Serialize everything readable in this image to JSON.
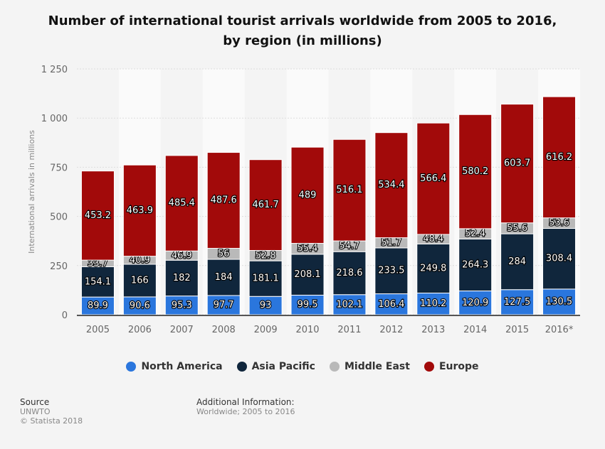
{
  "chart_data": {
    "type": "bar",
    "stacked": true,
    "title": "Number of international tourist arrivals worldwide from 2005 to 2016, by region (in millions)",
    "ylabel": "International arrivals in millions",
    "xlabel": "",
    "ylim": [
      0,
      1250
    ],
    "yticks": [
      0,
      250,
      500,
      750,
      1000,
      1250
    ],
    "ytick_labels": [
      "0",
      "250",
      "500",
      "750",
      "1 000",
      "1 250"
    ],
    "categories": [
      "2005",
      "2006",
      "2007",
      "2008",
      "2009",
      "2010",
      "2011",
      "2012",
      "2013",
      "2014",
      "2015",
      "2016*"
    ],
    "series": [
      {
        "name": "North America",
        "color": "#2a76dd",
        "values": [
          89.9,
          90.6,
          95.3,
          97.7,
          93,
          99.5,
          102.1,
          106.4,
          110.2,
          120.9,
          127.5,
          130.5
        ]
      },
      {
        "name": "Asia Pacific",
        "color": "#10263c",
        "values": [
          154.1,
          166,
          182,
          184,
          181.1,
          208.1,
          218.6,
          233.5,
          249.8,
          264.3,
          284,
          308.4
        ]
      },
      {
        "name": "Middle East",
        "color": "#b9b9b9",
        "values": [
          33.7,
          40.9,
          46.9,
          56,
          52.8,
          55.4,
          54.7,
          51.7,
          48.4,
          52.4,
          55.6,
          53.6
        ]
      },
      {
        "name": "Europe",
        "color": "#a20a0a",
        "values": [
          453.2,
          463.9,
          485.4,
          487.6,
          461.7,
          489,
          516.1,
          534.4,
          566.4,
          580.2,
          603.7,
          616.2
        ]
      }
    ],
    "grid": true,
    "legend": "bottom"
  },
  "footer": {
    "source_label": "Source",
    "source_value": "UNWTO",
    "copyright": "© Statista 2018",
    "info_label": "Additional Information:",
    "info_value": "Worldwide; 2005 to 2016"
  }
}
